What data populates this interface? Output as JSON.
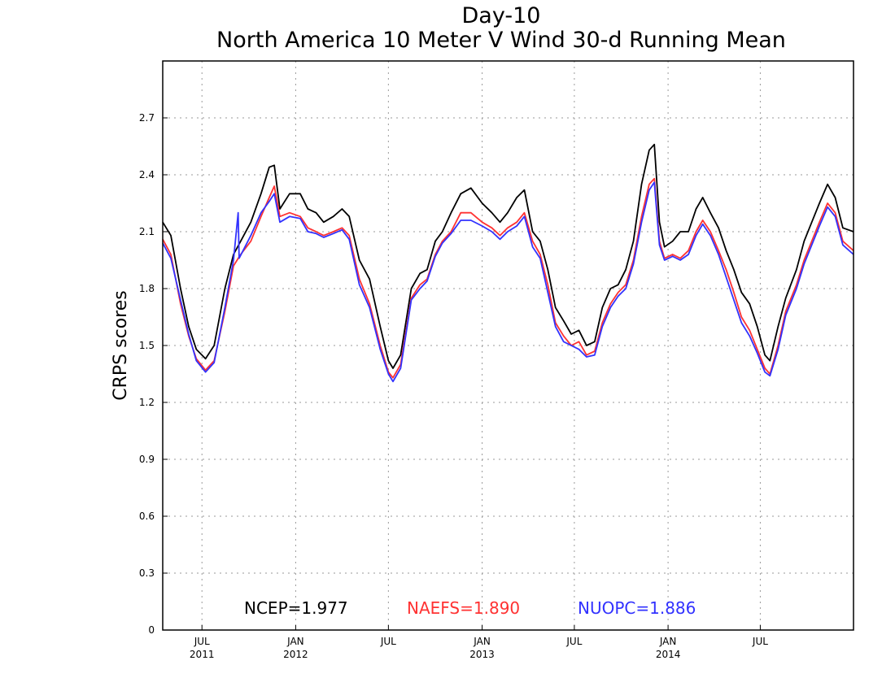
{
  "chart_data": {
    "type": "line",
    "title": "Day-10",
    "subtitle": "North America 10 Meter V Wind 30-d Running Mean",
    "xlabel": "",
    "ylabel": "CRPS scores",
    "ylim": [
      0,
      3.0
    ],
    "xlim": [
      "2011-04-15",
      "2014-12-31"
    ],
    "yticks": [
      0,
      0.3,
      0.6,
      0.9,
      1.2,
      1.5,
      1.8,
      2.1,
      2.4,
      2.7
    ],
    "ytick_labels": [
      "0",
      "0.3",
      "0.6",
      "0.9",
      "1.2",
      "1.5",
      "1.8",
      "2.1",
      "2.4",
      "2.7"
    ],
    "xticks": [
      {
        "date": "2011-07-01",
        "month": "JUL",
        "year": "2011"
      },
      {
        "date": "2012-01-01",
        "month": "JAN",
        "year": "2012"
      },
      {
        "date": "2012-07-01",
        "month": "JUL",
        "year": ""
      },
      {
        "date": "2013-01-01",
        "month": "JAN",
        "year": "2013"
      },
      {
        "date": "2013-07-01",
        "month": "JUL",
        "year": ""
      },
      {
        "date": "2014-01-01",
        "month": "JAN",
        "year": "2014"
      },
      {
        "date": "2014-07-01",
        "month": "JUL",
        "year": ""
      }
    ],
    "grid": true,
    "series": [
      {
        "name": "NCEP",
        "mean_label": "NCEP=1.977",
        "color": "#000000",
        "points": [
          [
            "2011-04-15",
            2.15
          ],
          [
            "2011-05-01",
            2.08
          ],
          [
            "2011-05-20",
            1.8
          ],
          [
            "2011-06-05",
            1.6
          ],
          [
            "2011-06-20",
            1.48
          ],
          [
            "2011-07-08",
            1.43
          ],
          [
            "2011-07-25",
            1.5
          ],
          [
            "2011-08-15",
            1.8
          ],
          [
            "2011-09-01",
            1.98
          ],
          [
            "2011-09-15",
            2.05
          ],
          [
            "2011-10-05",
            2.15
          ],
          [
            "2011-10-25",
            2.3
          ],
          [
            "2011-11-10",
            2.44
          ],
          [
            "2011-11-20",
            2.45
          ],
          [
            "2011-12-01",
            2.22
          ],
          [
            "2011-12-20",
            2.3
          ],
          [
            "2012-01-10",
            2.3
          ],
          [
            "2012-01-25",
            2.22
          ],
          [
            "2012-02-10",
            2.2
          ],
          [
            "2012-02-25",
            2.15
          ],
          [
            "2012-03-15",
            2.18
          ],
          [
            "2012-04-01",
            2.22
          ],
          [
            "2012-04-15",
            2.18
          ],
          [
            "2012-05-05",
            1.95
          ],
          [
            "2012-05-25",
            1.85
          ],
          [
            "2012-06-15",
            1.6
          ],
          [
            "2012-07-01",
            1.42
          ],
          [
            "2012-07-10",
            1.38
          ],
          [
            "2012-07-25",
            1.45
          ],
          [
            "2012-08-15",
            1.8
          ],
          [
            "2012-09-01",
            1.88
          ],
          [
            "2012-09-15",
            1.9
          ],
          [
            "2012-10-01",
            2.05
          ],
          [
            "2012-10-15",
            2.1
          ],
          [
            "2012-11-01",
            2.2
          ],
          [
            "2012-11-20",
            2.3
          ],
          [
            "2012-12-10",
            2.33
          ],
          [
            "2013-01-01",
            2.25
          ],
          [
            "2013-01-20",
            2.2
          ],
          [
            "2013-02-05",
            2.15
          ],
          [
            "2013-02-20",
            2.2
          ],
          [
            "2013-03-10",
            2.28
          ],
          [
            "2013-03-25",
            2.32
          ],
          [
            "2013-04-10",
            2.1
          ],
          [
            "2013-04-25",
            2.05
          ],
          [
            "2013-05-10",
            1.9
          ],
          [
            "2013-05-25",
            1.7
          ],
          [
            "2013-06-10",
            1.63
          ],
          [
            "2013-06-25",
            1.56
          ],
          [
            "2013-07-10",
            1.58
          ],
          [
            "2013-07-25",
            1.5
          ],
          [
            "2013-08-10",
            1.52
          ],
          [
            "2013-08-25",
            1.7
          ],
          [
            "2013-09-10",
            1.8
          ],
          [
            "2013-09-25",
            1.82
          ],
          [
            "2013-10-10",
            1.9
          ],
          [
            "2013-10-25",
            2.05
          ],
          [
            "2013-11-10",
            2.35
          ],
          [
            "2013-11-25",
            2.53
          ],
          [
            "2013-12-05",
            2.56
          ],
          [
            "2013-12-15",
            2.15
          ],
          [
            "2013-12-25",
            2.02
          ],
          [
            "2014-01-10",
            2.05
          ],
          [
            "2014-01-25",
            2.1
          ],
          [
            "2014-02-10",
            2.1
          ],
          [
            "2014-02-25",
            2.22
          ],
          [
            "2014-03-10",
            2.28
          ],
          [
            "2014-03-25",
            2.2
          ],
          [
            "2014-04-10",
            2.12
          ],
          [
            "2014-04-25",
            2.0
          ],
          [
            "2014-05-10",
            1.9
          ],
          [
            "2014-05-25",
            1.78
          ],
          [
            "2014-06-10",
            1.72
          ],
          [
            "2014-06-25",
            1.6
          ],
          [
            "2014-07-10",
            1.45
          ],
          [
            "2014-07-20",
            1.42
          ],
          [
            "2014-08-05",
            1.6
          ],
          [
            "2014-08-20",
            1.75
          ],
          [
            "2014-09-10",
            1.9
          ],
          [
            "2014-09-25",
            2.05
          ],
          [
            "2014-10-10",
            2.15
          ],
          [
            "2014-10-25",
            2.25
          ],
          [
            "2014-11-10",
            2.35
          ],
          [
            "2014-11-25",
            2.28
          ],
          [
            "2014-12-10",
            2.12
          ],
          [
            "2014-12-31",
            2.1
          ]
        ]
      },
      {
        "name": "NAEFS",
        "mean_label": "NAEFS=1.890",
        "color": "#ff3232",
        "points": [
          [
            "2011-04-15",
            2.06
          ],
          [
            "2011-05-01",
            1.98
          ],
          [
            "2011-05-20",
            1.72
          ],
          [
            "2011-06-05",
            1.55
          ],
          [
            "2011-06-20",
            1.43
          ],
          [
            "2011-07-08",
            1.37
          ],
          [
            "2011-07-25",
            1.42
          ],
          [
            "2011-08-15",
            1.68
          ],
          [
            "2011-09-01",
            1.92
          ],
          [
            "2011-09-15",
            1.98
          ],
          [
            "2011-10-05",
            2.05
          ],
          [
            "2011-10-25",
            2.18
          ],
          [
            "2011-11-10",
            2.28
          ],
          [
            "2011-11-20",
            2.34
          ],
          [
            "2011-12-01",
            2.18
          ],
          [
            "2011-12-20",
            2.2
          ],
          [
            "2012-01-10",
            2.18
          ],
          [
            "2012-01-25",
            2.12
          ],
          [
            "2012-02-10",
            2.1
          ],
          [
            "2012-02-25",
            2.08
          ],
          [
            "2012-03-15",
            2.1
          ],
          [
            "2012-04-01",
            2.12
          ],
          [
            "2012-04-15",
            2.08
          ],
          [
            "2012-05-05",
            1.85
          ],
          [
            "2012-05-25",
            1.72
          ],
          [
            "2012-06-15",
            1.5
          ],
          [
            "2012-07-01",
            1.36
          ],
          [
            "2012-07-10",
            1.33
          ],
          [
            "2012-07-25",
            1.4
          ],
          [
            "2012-08-15",
            1.75
          ],
          [
            "2012-09-01",
            1.82
          ],
          [
            "2012-09-15",
            1.85
          ],
          [
            "2012-10-01",
            1.98
          ],
          [
            "2012-10-15",
            2.05
          ],
          [
            "2012-11-01",
            2.1
          ],
          [
            "2012-11-20",
            2.2
          ],
          [
            "2012-12-10",
            2.2
          ],
          [
            "2013-01-01",
            2.15
          ],
          [
            "2013-01-20",
            2.12
          ],
          [
            "2013-02-05",
            2.08
          ],
          [
            "2013-02-20",
            2.12
          ],
          [
            "2013-03-10",
            2.15
          ],
          [
            "2013-03-25",
            2.2
          ],
          [
            "2013-04-10",
            2.05
          ],
          [
            "2013-04-25",
            1.98
          ],
          [
            "2013-05-10",
            1.82
          ],
          [
            "2013-05-25",
            1.62
          ],
          [
            "2013-06-10",
            1.55
          ],
          [
            "2013-06-25",
            1.5
          ],
          [
            "2013-07-10",
            1.52
          ],
          [
            "2013-07-25",
            1.45
          ],
          [
            "2013-08-10",
            1.47
          ],
          [
            "2013-08-25",
            1.62
          ],
          [
            "2013-09-10",
            1.72
          ],
          [
            "2013-09-25",
            1.78
          ],
          [
            "2013-10-10",
            1.82
          ],
          [
            "2013-10-25",
            1.95
          ],
          [
            "2013-11-10",
            2.18
          ],
          [
            "2013-11-25",
            2.35
          ],
          [
            "2013-12-05",
            2.38
          ],
          [
            "2013-12-15",
            2.05
          ],
          [
            "2013-12-25",
            1.96
          ],
          [
            "2014-01-10",
            1.98
          ],
          [
            "2014-01-25",
            1.96
          ],
          [
            "2014-02-10",
            2.0
          ],
          [
            "2014-02-25",
            2.1
          ],
          [
            "2014-03-10",
            2.16
          ],
          [
            "2014-03-25",
            2.1
          ],
          [
            "2014-04-10",
            2.0
          ],
          [
            "2014-04-25",
            1.9
          ],
          [
            "2014-05-10",
            1.78
          ],
          [
            "2014-05-25",
            1.65
          ],
          [
            "2014-06-10",
            1.58
          ],
          [
            "2014-06-25",
            1.48
          ],
          [
            "2014-07-10",
            1.38
          ],
          [
            "2014-07-20",
            1.35
          ],
          [
            "2014-08-05",
            1.5
          ],
          [
            "2014-08-20",
            1.68
          ],
          [
            "2014-09-10",
            1.82
          ],
          [
            "2014-09-25",
            1.95
          ],
          [
            "2014-10-10",
            2.05
          ],
          [
            "2014-10-25",
            2.15
          ],
          [
            "2014-11-10",
            2.25
          ],
          [
            "2014-11-25",
            2.2
          ],
          [
            "2014-12-10",
            2.05
          ],
          [
            "2014-12-31",
            2.0
          ]
        ]
      },
      {
        "name": "NUOPC",
        "mean_label": "NUOPC=1.886",
        "color": "#3232ff",
        "points": [
          [
            "2011-04-15",
            2.04
          ],
          [
            "2011-05-01",
            1.96
          ],
          [
            "2011-05-20",
            1.74
          ],
          [
            "2011-06-05",
            1.56
          ],
          [
            "2011-06-20",
            1.42
          ],
          [
            "2011-07-08",
            1.36
          ],
          [
            "2011-07-25",
            1.41
          ],
          [
            "2011-08-15",
            1.7
          ],
          [
            "2011-09-01",
            1.95
          ],
          [
            "2011-09-10",
            2.2
          ],
          [
            "2011-09-12",
            1.96
          ],
          [
            "2011-10-05",
            2.08
          ],
          [
            "2011-10-25",
            2.2
          ],
          [
            "2011-11-10",
            2.26
          ],
          [
            "2011-11-20",
            2.3
          ],
          [
            "2011-12-01",
            2.15
          ],
          [
            "2011-12-20",
            2.18
          ],
          [
            "2012-01-10",
            2.17
          ],
          [
            "2012-01-25",
            2.1
          ],
          [
            "2012-02-10",
            2.09
          ],
          [
            "2012-02-25",
            2.07
          ],
          [
            "2012-03-15",
            2.09
          ],
          [
            "2012-04-01",
            2.11
          ],
          [
            "2012-04-15",
            2.06
          ],
          [
            "2012-05-05",
            1.82
          ],
          [
            "2012-05-25",
            1.7
          ],
          [
            "2012-06-15",
            1.48
          ],
          [
            "2012-07-01",
            1.35
          ],
          [
            "2012-07-10",
            1.31
          ],
          [
            "2012-07-25",
            1.38
          ],
          [
            "2012-08-15",
            1.74
          ],
          [
            "2012-09-01",
            1.8
          ],
          [
            "2012-09-15",
            1.84
          ],
          [
            "2012-10-01",
            1.97
          ],
          [
            "2012-10-15",
            2.04
          ],
          [
            "2012-11-01",
            2.09
          ],
          [
            "2012-11-20",
            2.16
          ],
          [
            "2012-12-10",
            2.16
          ],
          [
            "2013-01-01",
            2.13
          ],
          [
            "2013-01-20",
            2.1
          ],
          [
            "2013-02-05",
            2.06
          ],
          [
            "2013-02-20",
            2.1
          ],
          [
            "2013-03-10",
            2.13
          ],
          [
            "2013-03-25",
            2.18
          ],
          [
            "2013-04-10",
            2.02
          ],
          [
            "2013-04-25",
            1.96
          ],
          [
            "2013-05-10",
            1.78
          ],
          [
            "2013-05-25",
            1.6
          ],
          [
            "2013-06-10",
            1.52
          ],
          [
            "2013-06-25",
            1.5
          ],
          [
            "2013-07-10",
            1.48
          ],
          [
            "2013-07-25",
            1.44
          ],
          [
            "2013-08-10",
            1.45
          ],
          [
            "2013-08-25",
            1.6
          ],
          [
            "2013-09-10",
            1.7
          ],
          [
            "2013-09-25",
            1.76
          ],
          [
            "2013-10-10",
            1.8
          ],
          [
            "2013-10-25",
            1.93
          ],
          [
            "2013-11-10",
            2.15
          ],
          [
            "2013-11-25",
            2.32
          ],
          [
            "2013-12-05",
            2.36
          ],
          [
            "2013-12-15",
            2.03
          ],
          [
            "2013-12-25",
            1.95
          ],
          [
            "2014-01-10",
            1.97
          ],
          [
            "2014-01-25",
            1.95
          ],
          [
            "2014-02-10",
            1.98
          ],
          [
            "2014-02-25",
            2.08
          ],
          [
            "2014-03-10",
            2.14
          ],
          [
            "2014-03-25",
            2.08
          ],
          [
            "2014-04-10",
            1.98
          ],
          [
            "2014-04-25",
            1.86
          ],
          [
            "2014-05-10",
            1.74
          ],
          [
            "2014-05-25",
            1.62
          ],
          [
            "2014-06-10",
            1.55
          ],
          [
            "2014-06-25",
            1.46
          ],
          [
            "2014-07-10",
            1.36
          ],
          [
            "2014-07-20",
            1.34
          ],
          [
            "2014-08-05",
            1.48
          ],
          [
            "2014-08-20",
            1.66
          ],
          [
            "2014-09-10",
            1.8
          ],
          [
            "2014-09-25",
            1.93
          ],
          [
            "2014-10-10",
            2.03
          ],
          [
            "2014-10-25",
            2.13
          ],
          [
            "2014-11-10",
            2.23
          ],
          [
            "2014-11-25",
            2.18
          ],
          [
            "2014-12-10",
            2.03
          ],
          [
            "2014-12-31",
            1.98
          ]
        ]
      }
    ]
  }
}
